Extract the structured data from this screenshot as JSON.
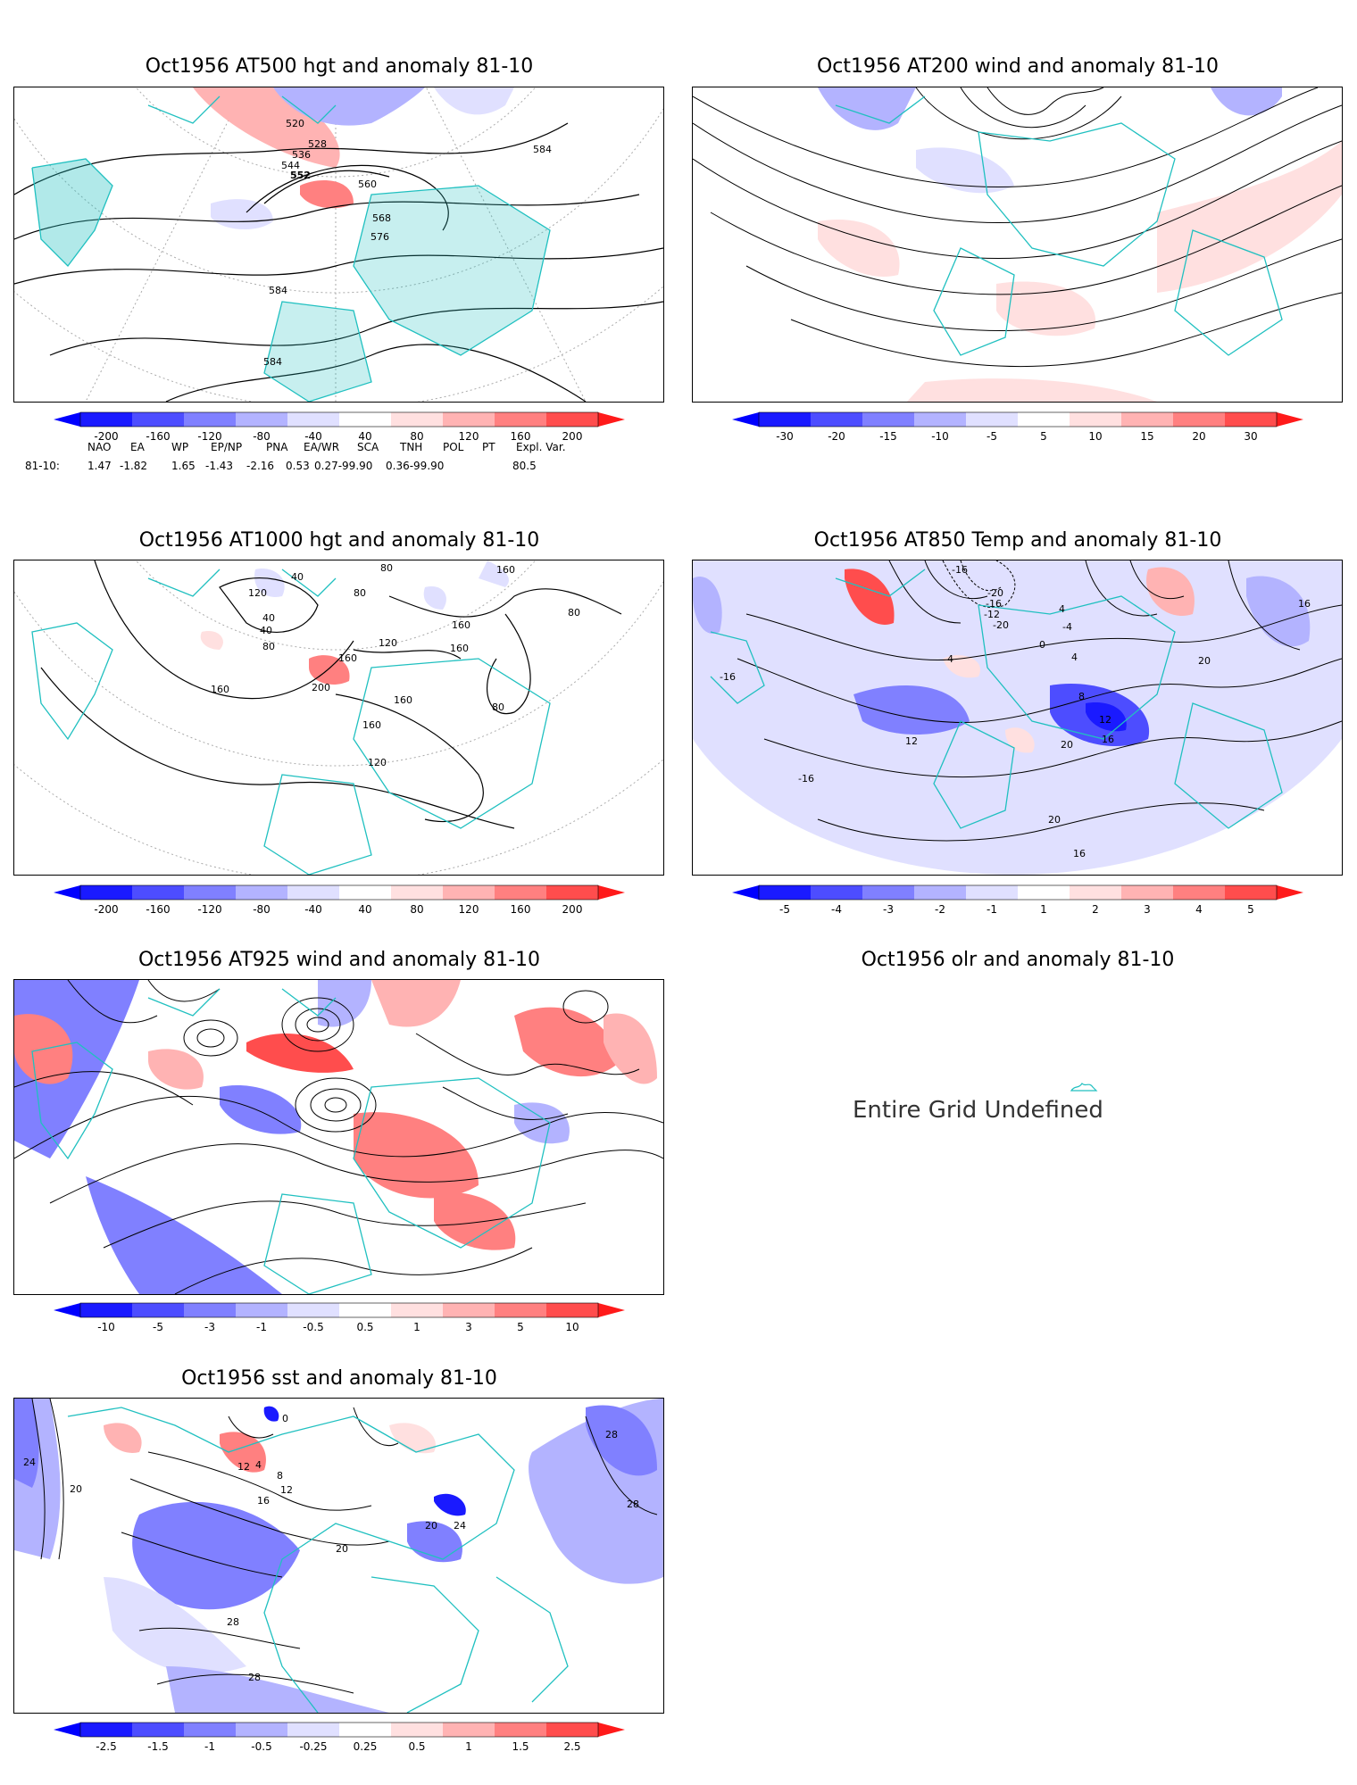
{
  "panels": [
    {
      "title": "Oct1956 AT500 hgt and anomaly 81-10"
    },
    {
      "title": "Oct1956 AT200 wind and anomaly 81-10"
    },
    {
      "title": "Oct1956 AT1000 hgt and anomaly 81-10"
    },
    {
      "title": "Oct1956 AT850 Temp and anomaly 81-10"
    },
    {
      "title": "Oct1956 AT925 wind and anomaly 81-10"
    },
    {
      "title": "Oct1956 olr and anomaly 81-10"
    },
    {
      "title": "Oct1956 sst and anomaly 81-10"
    }
  ],
  "contour_labels": {
    "p500": [
      "520",
      "528",
      "536",
      "544",
      "552",
      "560",
      "568",
      "576",
      "584",
      "584",
      "584"
    ],
    "p1000": [
      "40",
      "120",
      "80",
      "80",
      "160",
      "40",
      "40",
      "80",
      "160",
      "160",
      "80",
      "160",
      "200",
      "160",
      "120",
      "160",
      "80",
      "160",
      "120"
    ],
    "p850": [
      "-16",
      "4",
      "-20",
      "-16",
      "-12",
      "-4",
      "0",
      "4",
      "4",
      "8",
      "12",
      "16",
      "20",
      "12",
      "20",
      "16",
      "-16",
      "-16",
      "20",
      "16",
      "-20"
    ],
    "sst": [
      "24",
      "20",
      "0",
      "4",
      "8",
      "12",
      "12",
      "16",
      "20",
      "20",
      "24",
      "28",
      "28",
      "28",
      "28"
    ]
  },
  "colorbars": {
    "hgt": [
      "-200",
      "-160",
      "-120",
      "-80",
      "-40",
      "40",
      "80",
      "120",
      "160",
      "200"
    ],
    "wind200": [
      "-30",
      "-20",
      "-15",
      "-10",
      "-5",
      "5",
      "10",
      "15",
      "20",
      "30"
    ],
    "temp850": [
      "-5",
      "-4",
      "-3",
      "-2",
      "-1",
      "1",
      "2",
      "3",
      "4",
      "5"
    ],
    "wind925": [
      "-10",
      "-5",
      "-3",
      "-1",
      "-0.5",
      "0.5",
      "1",
      "3",
      "5",
      "10"
    ],
    "sst": [
      "-2.5",
      "-1.5",
      "-1",
      "-0.5",
      "-0.25",
      "0.25",
      "0.5",
      "1",
      "1.5",
      "2.5"
    ]
  },
  "colors": {
    "neg": [
      "#1a1aff",
      "#4d4dff",
      "#8080ff",
      "#b3b3ff",
      "#e0e0ff"
    ],
    "pos": [
      "#ffe0e0",
      "#ffb3b3",
      "#ff8080",
      "#ff4d4d",
      "#ff1a1a"
    ],
    "coast": "#20c0c0"
  },
  "indices": {
    "header": [
      "NAO",
      "EA",
      "WP",
      "EP/NP",
      "PNA",
      "EA/WR",
      "SCA",
      "TNH",
      "POL",
      "PT",
      "Expl. Var."
    ],
    "row_label": "81-10:",
    "values": [
      "1.47",
      "-1.82",
      "1.65",
      "-1.43",
      "-2.16",
      "0.53",
      "0.27-99.90",
      "0.36-99.90",
      "80.5"
    ]
  },
  "olr_message": "Entire Grid Undefined"
}
